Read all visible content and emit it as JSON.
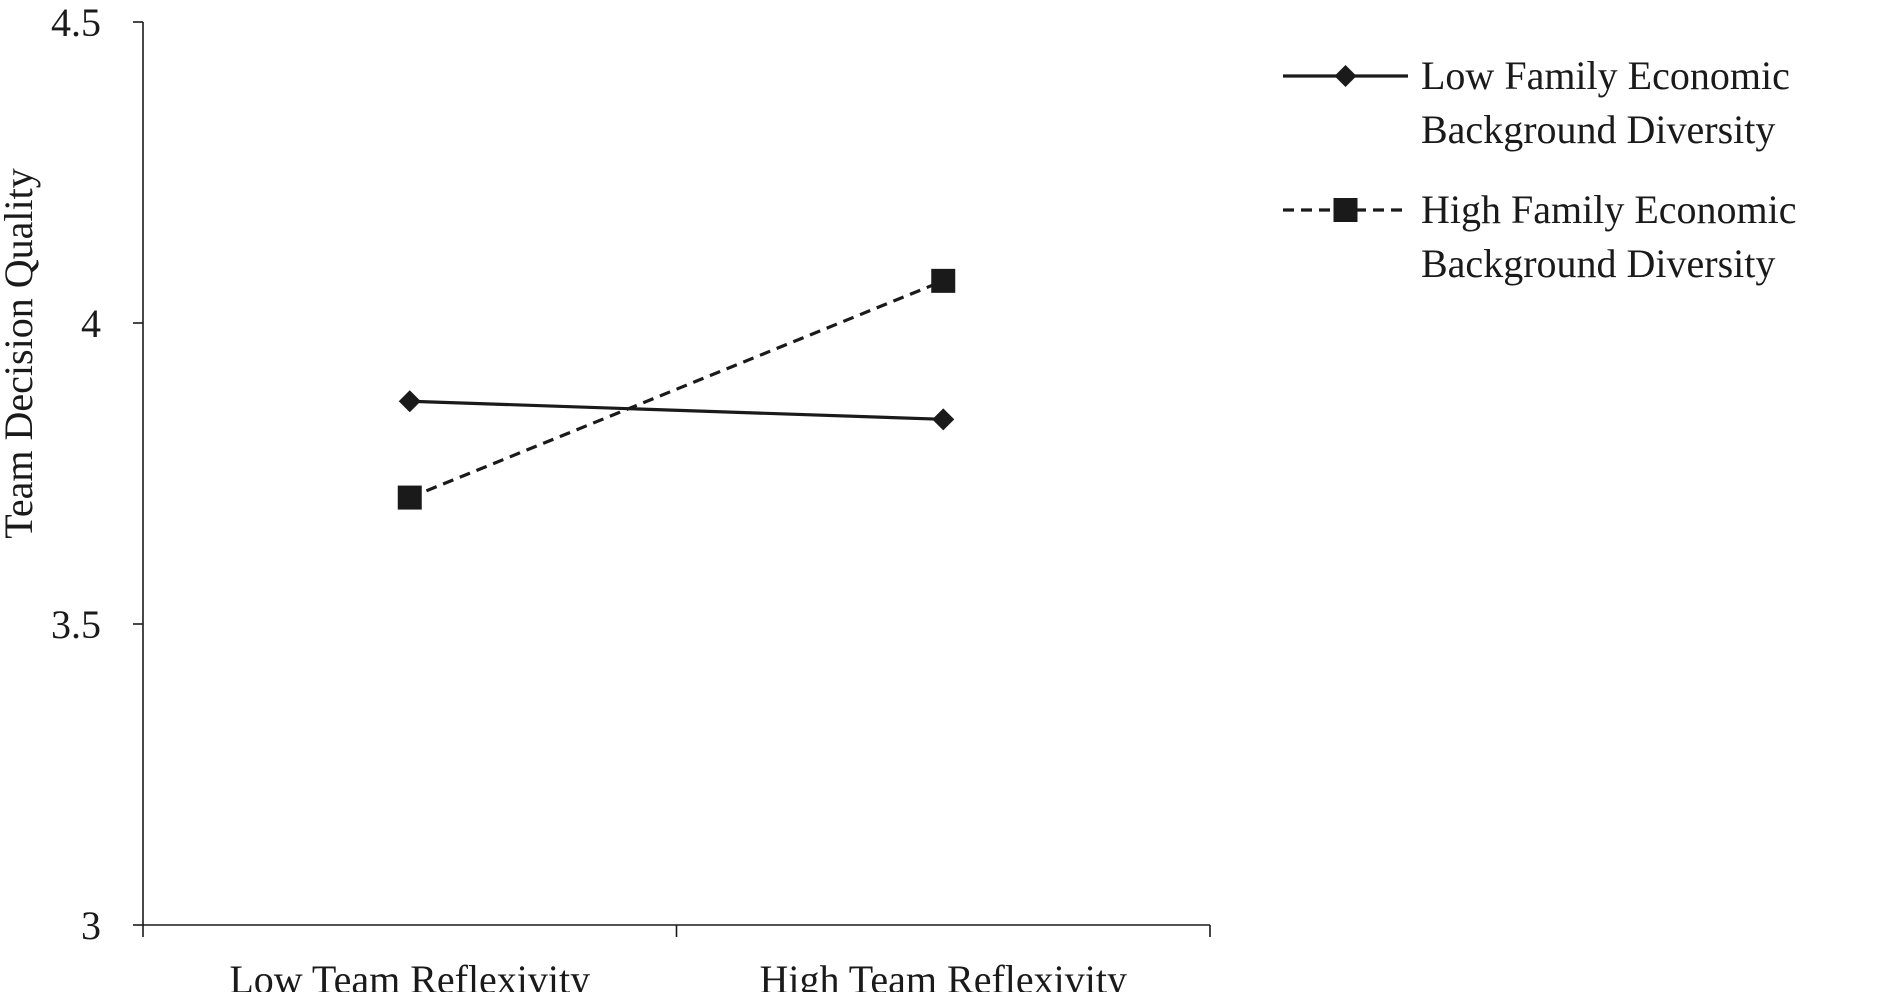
{
  "chart_data": {
    "type": "line",
    "title": "",
    "xlabel": "",
    "ylabel": "Team Decision Quality",
    "categories": [
      "Low Team Reflexivity",
      "High Team Reflexivity"
    ],
    "ylim": [
      3,
      4.5
    ],
    "yticks": [
      "3",
      "3.5",
      "4",
      "4.5"
    ],
    "grid": false,
    "legend_position": "top-right",
    "series": [
      {
        "name": "Low Family Economic Background Diversity",
        "name_lines": [
          "Low Family Economic",
          "Background Diversity"
        ],
        "values": [
          3.87,
          3.84
        ],
        "line_style": "solid",
        "marker": "diamond",
        "color": "#1a1a1a"
      },
      {
        "name": "High Family Economic Background Diversity",
        "name_lines": [
          "High Family Economic",
          "Background Diversity"
        ],
        "values": [
          3.71,
          4.07
        ],
        "line_style": "dashed",
        "marker": "square",
        "color": "#1a1a1a"
      }
    ]
  }
}
